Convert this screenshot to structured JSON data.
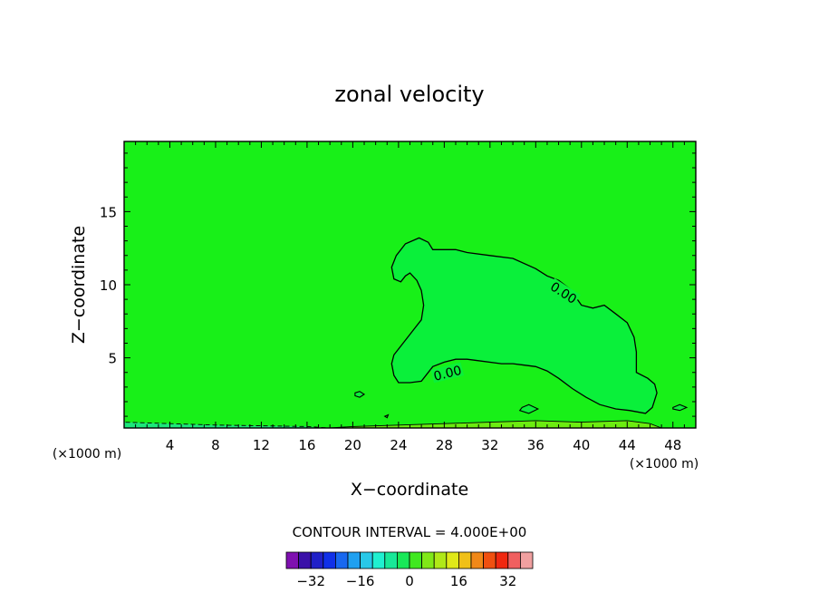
{
  "chart_data": {
    "type": "contour",
    "title": "zonal velocity",
    "xlabel": "X−coordinate",
    "ylabel": "Z−coordinate",
    "x_unit_left": "(×1000 m)",
    "x_unit_right": "(×1000 m)",
    "xlim": [
      0,
      50
    ],
    "ylim": [
      0.2,
      19.8
    ],
    "x_ticks": [
      4,
      8,
      12,
      16,
      20,
      24,
      28,
      32,
      36,
      40,
      44,
      48
    ],
    "y_ticks": [
      5,
      10,
      15
    ],
    "contour_interval_label": "CONTOUR INTERVAL = 4.000E+00",
    "contour_interval": 4.0,
    "contour_labels": [
      "0.00",
      "0.00"
    ],
    "background_fill": "#18f018",
    "regions": [
      {
        "name": "positive-core",
        "level": 0,
        "fill": "#0af03a",
        "outline": [
          [
            23.6,
            10.4
          ],
          [
            23.4,
            11.2
          ],
          [
            23.8,
            12
          ],
          [
            24.6,
            12.8
          ],
          [
            25.8,
            13.2
          ],
          [
            26.6,
            12.9
          ],
          [
            27,
            12.4
          ],
          [
            29,
            12.4
          ],
          [
            30,
            12.2
          ],
          [
            32,
            12.0
          ],
          [
            34,
            11.8
          ],
          [
            36,
            11.1
          ],
          [
            37,
            10.6
          ],
          [
            38,
            10.3
          ],
          [
            39,
            9.7
          ],
          [
            40,
            8.6
          ],
          [
            41,
            8.4
          ],
          [
            42,
            8.6
          ],
          [
            43,
            8.0
          ],
          [
            44,
            7.4
          ],
          [
            44.6,
            6.4
          ],
          [
            44.8,
            5.4
          ],
          [
            44.8,
            4.0
          ],
          [
            45.8,
            3.6
          ],
          [
            46.4,
            3.2
          ],
          [
            46.6,
            2.6
          ],
          [
            46.2,
            1.6
          ],
          [
            45.6,
            1.2
          ],
          [
            44.2,
            1.4
          ],
          [
            43,
            1.5
          ],
          [
            41.6,
            1.8
          ],
          [
            40.4,
            2.3
          ],
          [
            39.2,
            2.9
          ],
          [
            38,
            3.6
          ],
          [
            37,
            4.1
          ],
          [
            36,
            4.4
          ],
          [
            35,
            4.5
          ],
          [
            34,
            4.6
          ],
          [
            33,
            4.6
          ],
          [
            31,
            4.8
          ],
          [
            30,
            4.9
          ],
          [
            29,
            4.9
          ],
          [
            28,
            4.7
          ],
          [
            27,
            4.4
          ],
          [
            26,
            3.4
          ],
          [
            25,
            3.3
          ],
          [
            24,
            3.3
          ],
          [
            23.6,
            3.8
          ],
          [
            23.4,
            4.6
          ],
          [
            23.6,
            5.2
          ],
          [
            24.4,
            6.0
          ],
          [
            25.4,
            7.0
          ],
          [
            26,
            7.6
          ],
          [
            26.2,
            8.6
          ],
          [
            26,
            9.6
          ],
          [
            25.6,
            10.3
          ],
          [
            25,
            10.8
          ],
          [
            24.6,
            10.6
          ],
          [
            24.2,
            10.2
          ]
        ]
      },
      {
        "name": "surface-band",
        "level": 4,
        "fill": "#6cec10",
        "outline": [
          [
            18,
            0.2
          ],
          [
            20,
            0.3
          ],
          [
            24,
            0.4
          ],
          [
            28,
            0.5
          ],
          [
            32,
            0.6
          ],
          [
            36,
            0.7
          ],
          [
            40,
            0.6
          ],
          [
            44,
            0.7
          ],
          [
            46,
            0.5
          ],
          [
            47,
            0.2
          ]
        ]
      },
      {
        "name": "surface-negative",
        "level": -4,
        "fill": "#1ce87a",
        "outline": [
          [
            0,
            0.2
          ],
          [
            0,
            0.6
          ],
          [
            4,
            0.5
          ],
          [
            8,
            0.4
          ],
          [
            12,
            0.35
          ],
          [
            16,
            0.3
          ],
          [
            18,
            0.2
          ]
        ]
      }
    ],
    "small_contours": [
      [
        [
          20.2,
          2.6
        ],
        [
          20.6,
          2.7
        ],
        [
          21,
          2.5
        ],
        [
          20.6,
          2.3
        ],
        [
          20.2,
          2.4
        ]
      ],
      [
        [
          34.8,
          1.6
        ],
        [
          35.4,
          1.8
        ],
        [
          36.2,
          1.5
        ],
        [
          35.4,
          1.2
        ],
        [
          34.6,
          1.4
        ]
      ],
      [
        [
          48,
          1.6
        ],
        [
          48.6,
          1.8
        ],
        [
          49.2,
          1.6
        ],
        [
          48.6,
          1.4
        ],
        [
          48,
          1.5
        ]
      ],
      [
        [
          22.8,
          1.0
        ],
        [
          23.1,
          1.1
        ],
        [
          23.0,
          0.9
        ]
      ]
    ],
    "colorbar": {
      "colors": [
        "#7f10b0",
        "#3a10a8",
        "#2020c8",
        "#1030e8",
        "#1868f0",
        "#20a0f0",
        "#28c8e8",
        "#20f0d0",
        "#18e898",
        "#18e858",
        "#40e820",
        "#80e818",
        "#b0e818",
        "#e0e818",
        "#f0c018",
        "#f08818",
        "#f05010",
        "#f02810",
        "#f06060",
        "#f0a0a0"
      ],
      "tick_labels": [
        "−32",
        "−16",
        "0",
        "16",
        "32"
      ],
      "tick_values": [
        -32,
        -16,
        0,
        16,
        32
      ]
    }
  }
}
